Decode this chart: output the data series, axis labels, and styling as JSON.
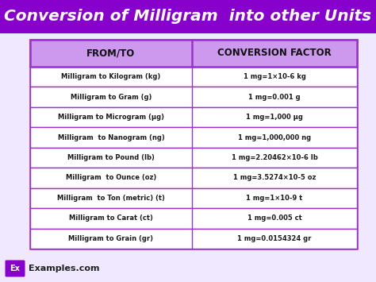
{
  "title": "Conversion of Milligram  into other Units",
  "title_bg": "#8800CC",
  "title_color": "#FFFFFF",
  "header_bg": "#CC99EE",
  "header_color": "#111111",
  "col1_header": "FROM/TO",
  "col2_header": "CONVERSION FACTOR",
  "rows": [
    [
      "Milligram to Kilogram (kg)",
      "1 mg=1×10-6 kg"
    ],
    [
      "Milligram to Gram (g)",
      "1 mg=0.001 g"
    ],
    [
      "Milligram to Microgram (µg)",
      "1 mg=1,000 µg"
    ],
    [
      "Milligram  to Nanogram (ng)",
      "1 mg=1,000,000 ng"
    ],
    [
      "Milligram to Pound (lb)",
      "1 mg=2.20462×10-6 lb"
    ],
    [
      "Milligram  to Ounce (oz)",
      "1 mg=3.5274×10-5 oz"
    ],
    [
      "Milligram  to Ton (metric) (t)",
      "1 mg=1×10-9 t"
    ],
    [
      "Milligram to Carat (ct)",
      "1 mg=0.005 ct"
    ],
    [
      "Milligram to Grain (gr)",
      "1 mg=0.0154324 gr"
    ]
  ],
  "border_color": "#9933CC",
  "footer_text": "Examples.com",
  "footer_bg": "#8800CC",
  "footer_ex": "Ex",
  "bg_color": "#FFFFFF",
  "outer_bg": "#F0E8FF",
  "col_split": 0.495
}
